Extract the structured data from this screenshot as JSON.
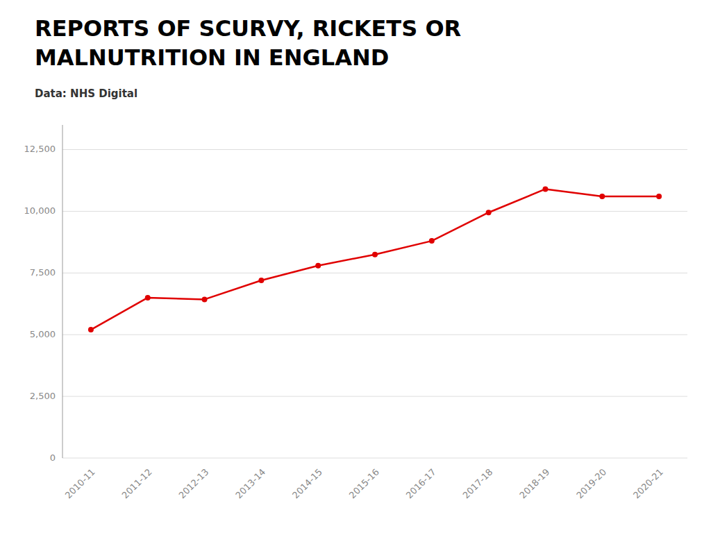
{
  "chart_data": {
    "type": "line",
    "title": "REPORTS OF SCURVY, RICKETS OR\nMALNUTRITION IN ENGLAND",
    "subtitle": "Data: NHS Digital",
    "categories": [
      "2010-11",
      "2011-12",
      "2012-13",
      "2013-14",
      "2014-15",
      "2015-16",
      "2016-17",
      "2017-18",
      "2018-19",
      "2019-20",
      "2020-21"
    ],
    "values": [
      5200,
      6500,
      6430,
      7200,
      7800,
      8250,
      8800,
      9950,
      10900,
      10600,
      10600
    ],
    "color": "#e00000",
    "marker": "circle",
    "ylim": [
      0,
      13500
    ],
    "yticks": [
      0,
      {
        "value": 2500,
        "label": "2,500"
      },
      {
        "value": 5000,
        "label": "5,000"
      },
      {
        "value": 7500,
        "label": "7,500"
      },
      {
        "value": 10000,
        "label": "10,000"
      },
      {
        "value": 12500,
        "label": "12,500"
      }
    ],
    "grid": true
  }
}
